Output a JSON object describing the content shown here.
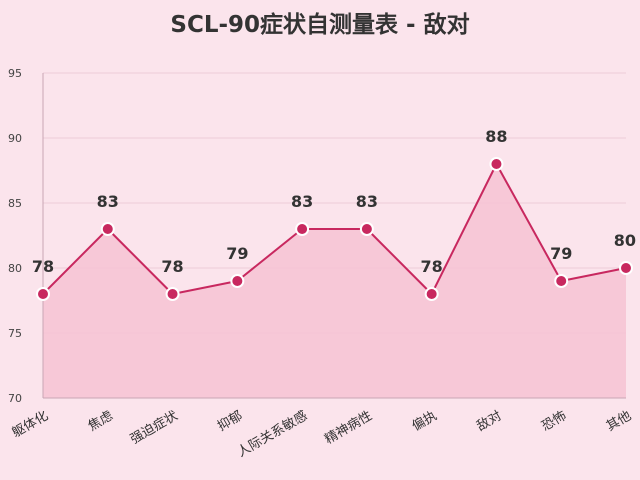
{
  "chart_data": {
    "type": "area",
    "title": "SCL-90症状自测量表 - 敌对",
    "xlabel": "",
    "ylabel": "",
    "categories": [
      "躯体化",
      "焦虑",
      "强迫症状",
      "抑郁",
      "人际关系敏感",
      "精神病性",
      "偏执",
      "敌对",
      "恐怖",
      "其他"
    ],
    "series": [
      {
        "values": [
          78,
          83,
          78,
          79,
          83,
          83,
          78,
          88,
          79,
          80
        ]
      }
    ],
    "ylim": [
      70,
      95
    ],
    "yticks": [
      70,
      75,
      80,
      85,
      90,
      95
    ],
    "grid": true,
    "legend": "none",
    "colors": {
      "background": "#fbe4ec",
      "line": "#c8285f",
      "fill": "#f6c3d4",
      "marker_stroke": "#ffffff",
      "grid": "#eccdd8",
      "axis": "#c9a6b4"
    }
  }
}
